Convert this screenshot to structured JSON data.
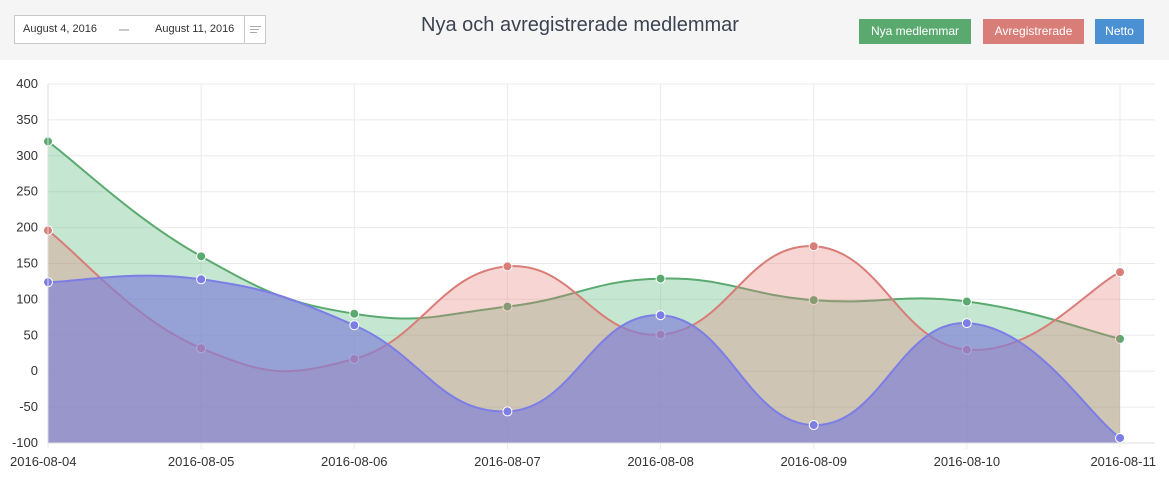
{
  "header": {
    "date_start": "August 4, 2016",
    "date_end": "August 11, 2016",
    "title": "Nya och avregistrerade medlemmar"
  },
  "legend": [
    {
      "label": "Nya medlemmar",
      "color": "#5aaa70"
    },
    {
      "label": "Avregistrerade",
      "color": "#d97d78"
    },
    {
      "label": "Netto",
      "color": "#4a90d2"
    }
  ],
  "chart_data": {
    "type": "area",
    "title": "Nya och avregistrerade medlemmar",
    "categories": [
      "2016-08-04",
      "2016-08-05",
      "2016-08-06",
      "2016-08-07",
      "2016-08-08",
      "2016-08-09",
      "2016-08-10",
      "2016-08-11"
    ],
    "ylim": [
      -100,
      400
    ],
    "yticks": [
      400,
      350,
      300,
      250,
      200,
      150,
      100,
      50,
      0,
      -50,
      -100
    ],
    "grid": true,
    "series": [
      {
        "name": "Nya medlemmar",
        "values": [
          320,
          160,
          80,
          90,
          129,
          99,
          97,
          45
        ],
        "line": "#5aaa70",
        "fill": "rgba(90,185,125,0.35)"
      },
      {
        "name": "Avregistrerade",
        "values": [
          196,
          32,
          17,
          146,
          51,
          174,
          30,
          138
        ],
        "line": "#d97d78",
        "fill": "rgba(228,125,118,0.32)"
      },
      {
        "name": "Netto",
        "values": [
          124,
          128,
          64,
          -56,
          78,
          -75,
          67,
          -93
        ],
        "line": "#7c7ee6",
        "fill": "rgba(128,128,215,0.68)"
      }
    ]
  }
}
